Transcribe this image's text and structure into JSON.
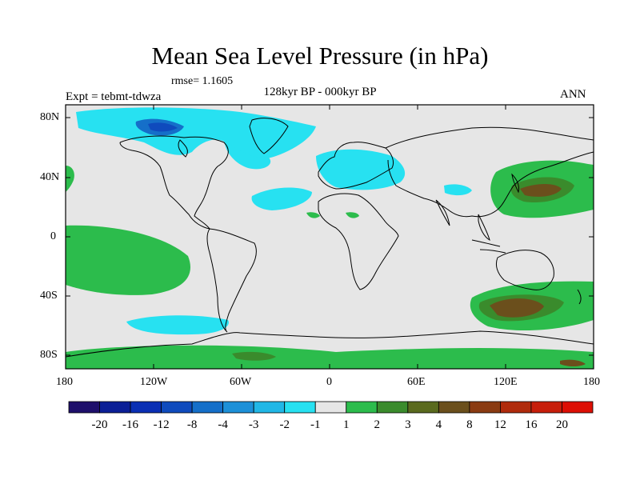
{
  "title": "Mean Sea Level Pressure (in hPa)",
  "rmse": "rmse= 1.1605",
  "expt": "Expt = tebmt-tdwza",
  "period": "128kyr BP - 000kyr BP",
  "season": "ANN",
  "lat_labels": [
    "80N",
    "40N",
    "0",
    "40S",
    "80S"
  ],
  "lon_labels": [
    "180",
    "120W",
    "60W",
    "0",
    "60E",
    "120E",
    "180"
  ],
  "colorbar": {
    "colors": [
      "#1e0f6b",
      "#0b1f96",
      "#0a2fb4",
      "#0f4bbd",
      "#156fc9",
      "#1d90d8",
      "#21b7e6",
      "#27e1f1",
      "#e6e6e6",
      "#2cbc4c",
      "#3a8b2c",
      "#5a6a1e",
      "#6b4f1c",
      "#8a3b12",
      "#b02b0c",
      "#c71e0a",
      "#dd0f05"
    ],
    "labels": [
      "-20",
      "-16",
      "-12",
      "-8",
      "-4",
      "-3",
      "-2",
      "-1",
      "1",
      "2",
      "3",
      "4",
      "8",
      "12",
      "16",
      "20"
    ]
  }
}
